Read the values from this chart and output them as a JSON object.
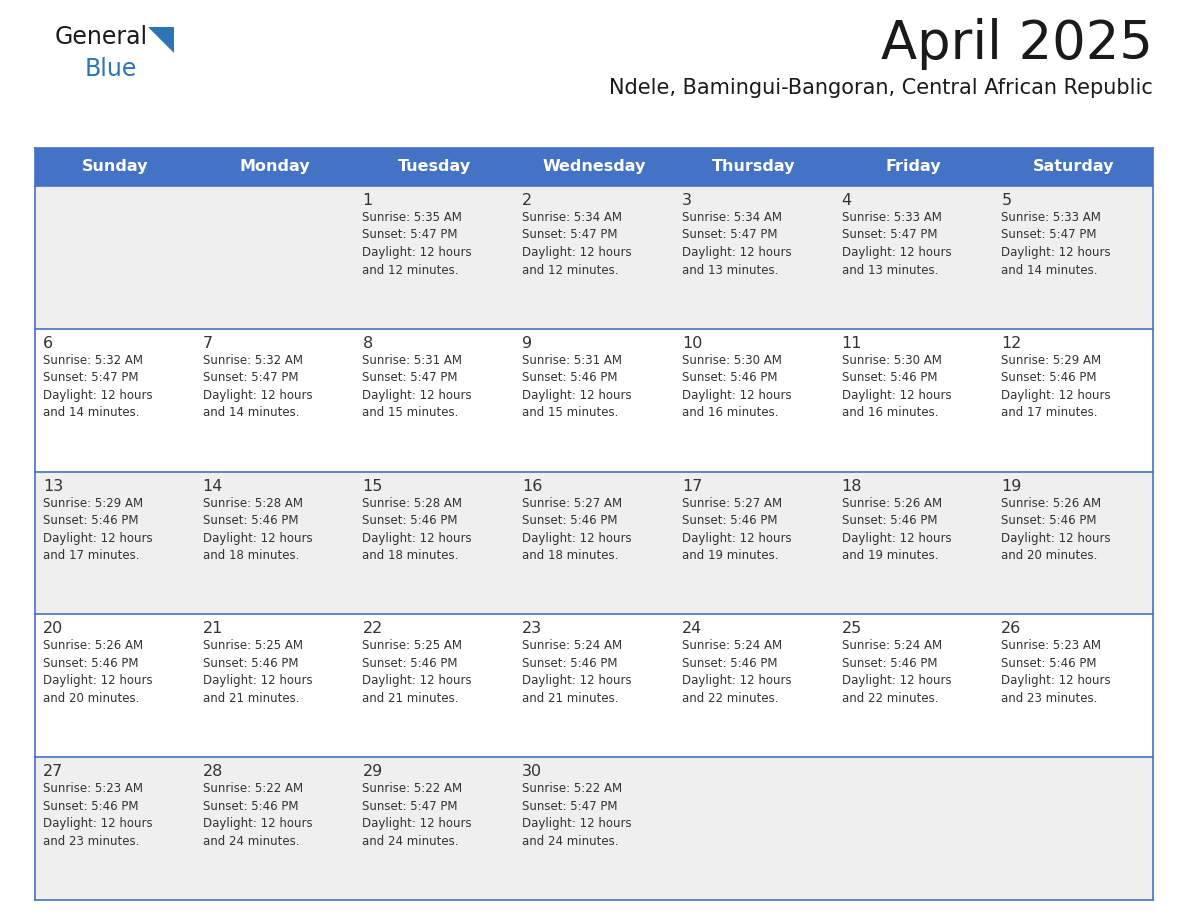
{
  "title": "April 2025",
  "subtitle": "Ndele, Bamingui-Bangoran, Central African Republic",
  "header_bg": "#4472C4",
  "header_text_color": "#FFFFFF",
  "row_bg_odd": "#EFEFEF",
  "row_bg_even": "#FFFFFF",
  "row_line_color": "#4472C4",
  "text_color": "#333333",
  "day_headers": [
    "Sunday",
    "Monday",
    "Tuesday",
    "Wednesday",
    "Thursday",
    "Friday",
    "Saturday"
  ],
  "weeks": [
    [
      {
        "day": "",
        "info": ""
      },
      {
        "day": "",
        "info": ""
      },
      {
        "day": "1",
        "info": "Sunrise: 5:35 AM\nSunset: 5:47 PM\nDaylight: 12 hours\nand 12 minutes."
      },
      {
        "day": "2",
        "info": "Sunrise: 5:34 AM\nSunset: 5:47 PM\nDaylight: 12 hours\nand 12 minutes."
      },
      {
        "day": "3",
        "info": "Sunrise: 5:34 AM\nSunset: 5:47 PM\nDaylight: 12 hours\nand 13 minutes."
      },
      {
        "day": "4",
        "info": "Sunrise: 5:33 AM\nSunset: 5:47 PM\nDaylight: 12 hours\nand 13 minutes."
      },
      {
        "day": "5",
        "info": "Sunrise: 5:33 AM\nSunset: 5:47 PM\nDaylight: 12 hours\nand 14 minutes."
      }
    ],
    [
      {
        "day": "6",
        "info": "Sunrise: 5:32 AM\nSunset: 5:47 PM\nDaylight: 12 hours\nand 14 minutes."
      },
      {
        "day": "7",
        "info": "Sunrise: 5:32 AM\nSunset: 5:47 PM\nDaylight: 12 hours\nand 14 minutes."
      },
      {
        "day": "8",
        "info": "Sunrise: 5:31 AM\nSunset: 5:47 PM\nDaylight: 12 hours\nand 15 minutes."
      },
      {
        "day": "9",
        "info": "Sunrise: 5:31 AM\nSunset: 5:46 PM\nDaylight: 12 hours\nand 15 minutes."
      },
      {
        "day": "10",
        "info": "Sunrise: 5:30 AM\nSunset: 5:46 PM\nDaylight: 12 hours\nand 16 minutes."
      },
      {
        "day": "11",
        "info": "Sunrise: 5:30 AM\nSunset: 5:46 PM\nDaylight: 12 hours\nand 16 minutes."
      },
      {
        "day": "12",
        "info": "Sunrise: 5:29 AM\nSunset: 5:46 PM\nDaylight: 12 hours\nand 17 minutes."
      }
    ],
    [
      {
        "day": "13",
        "info": "Sunrise: 5:29 AM\nSunset: 5:46 PM\nDaylight: 12 hours\nand 17 minutes."
      },
      {
        "day": "14",
        "info": "Sunrise: 5:28 AM\nSunset: 5:46 PM\nDaylight: 12 hours\nand 18 minutes."
      },
      {
        "day": "15",
        "info": "Sunrise: 5:28 AM\nSunset: 5:46 PM\nDaylight: 12 hours\nand 18 minutes."
      },
      {
        "day": "16",
        "info": "Sunrise: 5:27 AM\nSunset: 5:46 PM\nDaylight: 12 hours\nand 18 minutes."
      },
      {
        "day": "17",
        "info": "Sunrise: 5:27 AM\nSunset: 5:46 PM\nDaylight: 12 hours\nand 19 minutes."
      },
      {
        "day": "18",
        "info": "Sunrise: 5:26 AM\nSunset: 5:46 PM\nDaylight: 12 hours\nand 19 minutes."
      },
      {
        "day": "19",
        "info": "Sunrise: 5:26 AM\nSunset: 5:46 PM\nDaylight: 12 hours\nand 20 minutes."
      }
    ],
    [
      {
        "day": "20",
        "info": "Sunrise: 5:26 AM\nSunset: 5:46 PM\nDaylight: 12 hours\nand 20 minutes."
      },
      {
        "day": "21",
        "info": "Sunrise: 5:25 AM\nSunset: 5:46 PM\nDaylight: 12 hours\nand 21 minutes."
      },
      {
        "day": "22",
        "info": "Sunrise: 5:25 AM\nSunset: 5:46 PM\nDaylight: 12 hours\nand 21 minutes."
      },
      {
        "day": "23",
        "info": "Sunrise: 5:24 AM\nSunset: 5:46 PM\nDaylight: 12 hours\nand 21 minutes."
      },
      {
        "day": "24",
        "info": "Sunrise: 5:24 AM\nSunset: 5:46 PM\nDaylight: 12 hours\nand 22 minutes."
      },
      {
        "day": "25",
        "info": "Sunrise: 5:24 AM\nSunset: 5:46 PM\nDaylight: 12 hours\nand 22 minutes."
      },
      {
        "day": "26",
        "info": "Sunrise: 5:23 AM\nSunset: 5:46 PM\nDaylight: 12 hours\nand 23 minutes."
      }
    ],
    [
      {
        "day": "27",
        "info": "Sunrise: 5:23 AM\nSunset: 5:46 PM\nDaylight: 12 hours\nand 23 minutes."
      },
      {
        "day": "28",
        "info": "Sunrise: 5:22 AM\nSunset: 5:46 PM\nDaylight: 12 hours\nand 24 minutes."
      },
      {
        "day": "29",
        "info": "Sunrise: 5:22 AM\nSunset: 5:47 PM\nDaylight: 12 hours\nand 24 minutes."
      },
      {
        "day": "30",
        "info": "Sunrise: 5:22 AM\nSunset: 5:47 PM\nDaylight: 12 hours\nand 24 minutes."
      },
      {
        "day": "",
        "info": ""
      },
      {
        "day": "",
        "info": ""
      },
      {
        "day": "",
        "info": ""
      }
    ]
  ]
}
